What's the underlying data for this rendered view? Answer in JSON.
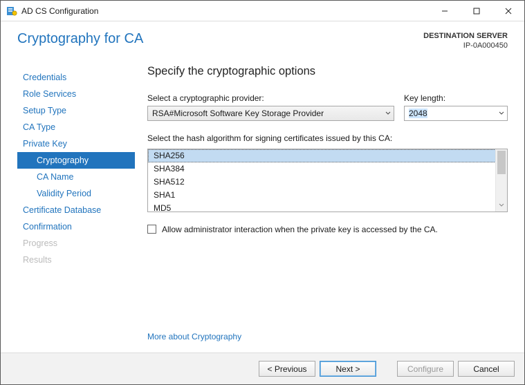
{
  "window": {
    "title": "AD CS Configuration",
    "accent_color": "#2174bd",
    "footer_bg": "#f2f2f2"
  },
  "header": {
    "page_title": "Cryptography for CA",
    "destination_label": "DESTINATION SERVER",
    "destination_value": "IP-0A000450"
  },
  "nav": {
    "items": [
      {
        "label": "Credentials",
        "sub": false,
        "selected": false,
        "disabled": false
      },
      {
        "label": "Role Services",
        "sub": false,
        "selected": false,
        "disabled": false
      },
      {
        "label": "Setup Type",
        "sub": false,
        "selected": false,
        "disabled": false
      },
      {
        "label": "CA Type",
        "sub": false,
        "selected": false,
        "disabled": false
      },
      {
        "label": "Private Key",
        "sub": false,
        "selected": false,
        "disabled": false
      },
      {
        "label": "Cryptography",
        "sub": true,
        "selected": true,
        "disabled": false
      },
      {
        "label": "CA Name",
        "sub": true,
        "selected": false,
        "disabled": false
      },
      {
        "label": "Validity Period",
        "sub": true,
        "selected": false,
        "disabled": false
      },
      {
        "label": "Certificate Database",
        "sub": false,
        "selected": false,
        "disabled": false
      },
      {
        "label": "Confirmation",
        "sub": false,
        "selected": false,
        "disabled": false
      },
      {
        "label": "Progress",
        "sub": false,
        "selected": false,
        "disabled": true
      },
      {
        "label": "Results",
        "sub": false,
        "selected": false,
        "disabled": true
      }
    ]
  },
  "content": {
    "heading": "Specify the cryptographic options",
    "provider": {
      "label": "Select a cryptographic provider:",
      "value": "RSA#Microsoft Software Key Storage Provider"
    },
    "key_length": {
      "label": "Key length:",
      "value": "2048"
    },
    "hash": {
      "label": "Select the hash algorithm for signing certificates issued by this CA:",
      "options": [
        "SHA256",
        "SHA384",
        "SHA512",
        "SHA1",
        "MD5"
      ],
      "selected_index": 0
    },
    "admin_interaction": {
      "checked": false,
      "label": "Allow administrator interaction when the private key is accessed by the CA."
    },
    "more_link": "More about Cryptography"
  },
  "footer": {
    "previous": "< Previous",
    "next": "Next >",
    "configure": "Configure",
    "cancel": "Cancel",
    "configure_enabled": false
  }
}
